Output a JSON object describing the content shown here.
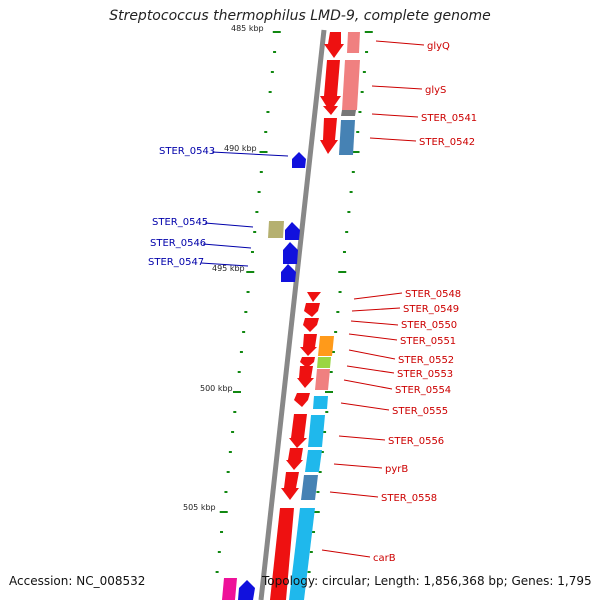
{
  "title": "Streptococcus thermophilus LMD-9, complete genome",
  "accession": "Accession: NC_008532",
  "topology": "Topology: circular; Length: 1,856,368 bp; Genes: 1,795",
  "colors": {
    "backbone": "#8a8a8a",
    "forward_cds": "#ee1111",
    "reverse_cds": "#1111dd",
    "forward_label": "#cc0000",
    "reverse_label": "#0000aa",
    "tick": "#118811",
    "pink": "#f08080",
    "steel": "#4682b4",
    "cyan": "#1fb8ec",
    "orange": "#ff9a1a",
    "lime": "#9ad642",
    "khaki": "#b5b070",
    "magenta": "#ee1199"
  },
  "kbp_labels": [
    "485 kbp",
    "490 kbp",
    "495 kbp",
    "500 kbp",
    "505 kbp"
  ],
  "gene_labels": {
    "left": [
      "STER_0543",
      "STER_0545",
      "STER_0546",
      "STER_0547"
    ],
    "right": [
      "glyQ",
      "glyS",
      "STER_0541",
      "STER_0542",
      "STER_0548",
      "STER_0549",
      "STER_0550",
      "STER_0551",
      "STER_0552",
      "STER_0553",
      "STER_0554",
      "STER_0555",
      "STER_0556",
      "pyrB",
      "STER_0558",
      "carB"
    ]
  }
}
